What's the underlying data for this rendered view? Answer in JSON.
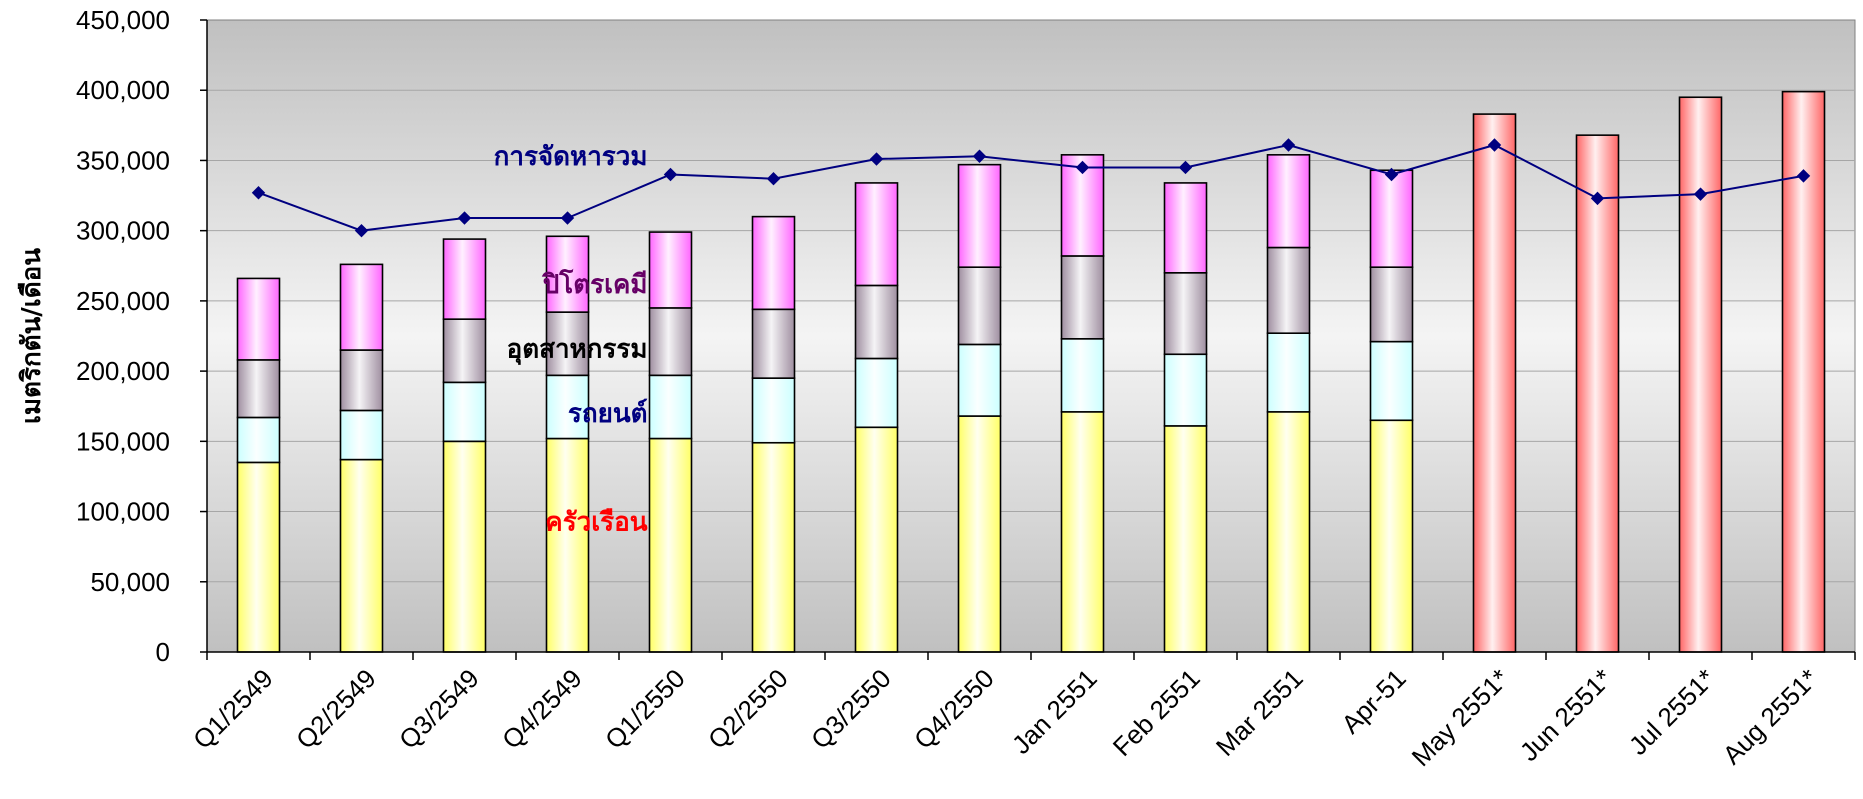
{
  "chart_data": {
    "type": "bar",
    "stacked": true,
    "title": "",
    "xlabel": "",
    "ylabel": "เมตริกตัน/เดือน",
    "ylim": [
      0,
      450000
    ],
    "ytick_step": 50000,
    "yticks": [
      "0",
      "50,000",
      "100,000",
      "150,000",
      "200,000",
      "250,000",
      "300,000",
      "350,000",
      "400,000",
      "450,000"
    ],
    "grid": true,
    "legend": "none",
    "categories": [
      "Q1/2549",
      "Q2/2549",
      "Q3/2549",
      "Q4/2549",
      "Q1/2550",
      "Q2/2550",
      "Q3/2550",
      "Q4/2550",
      "Jan 2551",
      "Feb 2551",
      "Mar 2551",
      "Apr-51",
      "May 2551*",
      "Jun 2551*",
      "Jul 2551*",
      "Aug 2551*"
    ],
    "series": [
      {
        "name": "ครัวเรือน",
        "kind": "stack",
        "color": "#ffff66",
        "values": [
          135000,
          137000,
          150000,
          152000,
          152000,
          149000,
          160000,
          168000,
          171000,
          161000,
          171000,
          165000,
          null,
          null,
          null,
          null
        ]
      },
      {
        "name": "รถยนต์",
        "kind": "stack",
        "color": "#ccffff",
        "values": [
          32000,
          35000,
          42000,
          45000,
          45000,
          46000,
          49000,
          51000,
          52000,
          51000,
          56000,
          56000,
          null,
          null,
          null,
          null
        ]
      },
      {
        "name": "อุตสาหกรรม",
        "kind": "stack",
        "color": "#9f8ea0",
        "values": [
          41000,
          43000,
          45000,
          45000,
          48000,
          49000,
          52000,
          55000,
          59000,
          58000,
          61000,
          53000,
          null,
          null,
          null,
          null
        ]
      },
      {
        "name": "ปิโตรเคมี",
        "kind": "stack",
        "color": "#ff66ff",
        "values": [
          58000,
          61000,
          57000,
          54000,
          54000,
          66000,
          73000,
          73000,
          72000,
          64000,
          66000,
          69000,
          null,
          null,
          null,
          null
        ]
      },
      {
        "name": "",
        "kind": "forecast",
        "color": "#ff6666",
        "values": [
          null,
          null,
          null,
          null,
          null,
          null,
          null,
          null,
          null,
          null,
          null,
          null,
          383000,
          368000,
          395000,
          399000
        ]
      },
      {
        "name": "การจัดหารวม",
        "kind": "line",
        "color": "#000080",
        "values": [
          327000,
          300000,
          309000,
          309000,
          340000,
          337000,
          351000,
          353000,
          345000,
          345000,
          361000,
          340000,
          361000,
          323000,
          326000,
          339000
        ]
      }
    ],
    "series_label_colors": {
      "การจัดหารวม": "#000080",
      "ปิโตรเคมี": "#660066",
      "อุตสาหกรรม": "#000000",
      "รถยนต์": "#000080",
      "ครัวเรือน": "#ff0000"
    }
  }
}
